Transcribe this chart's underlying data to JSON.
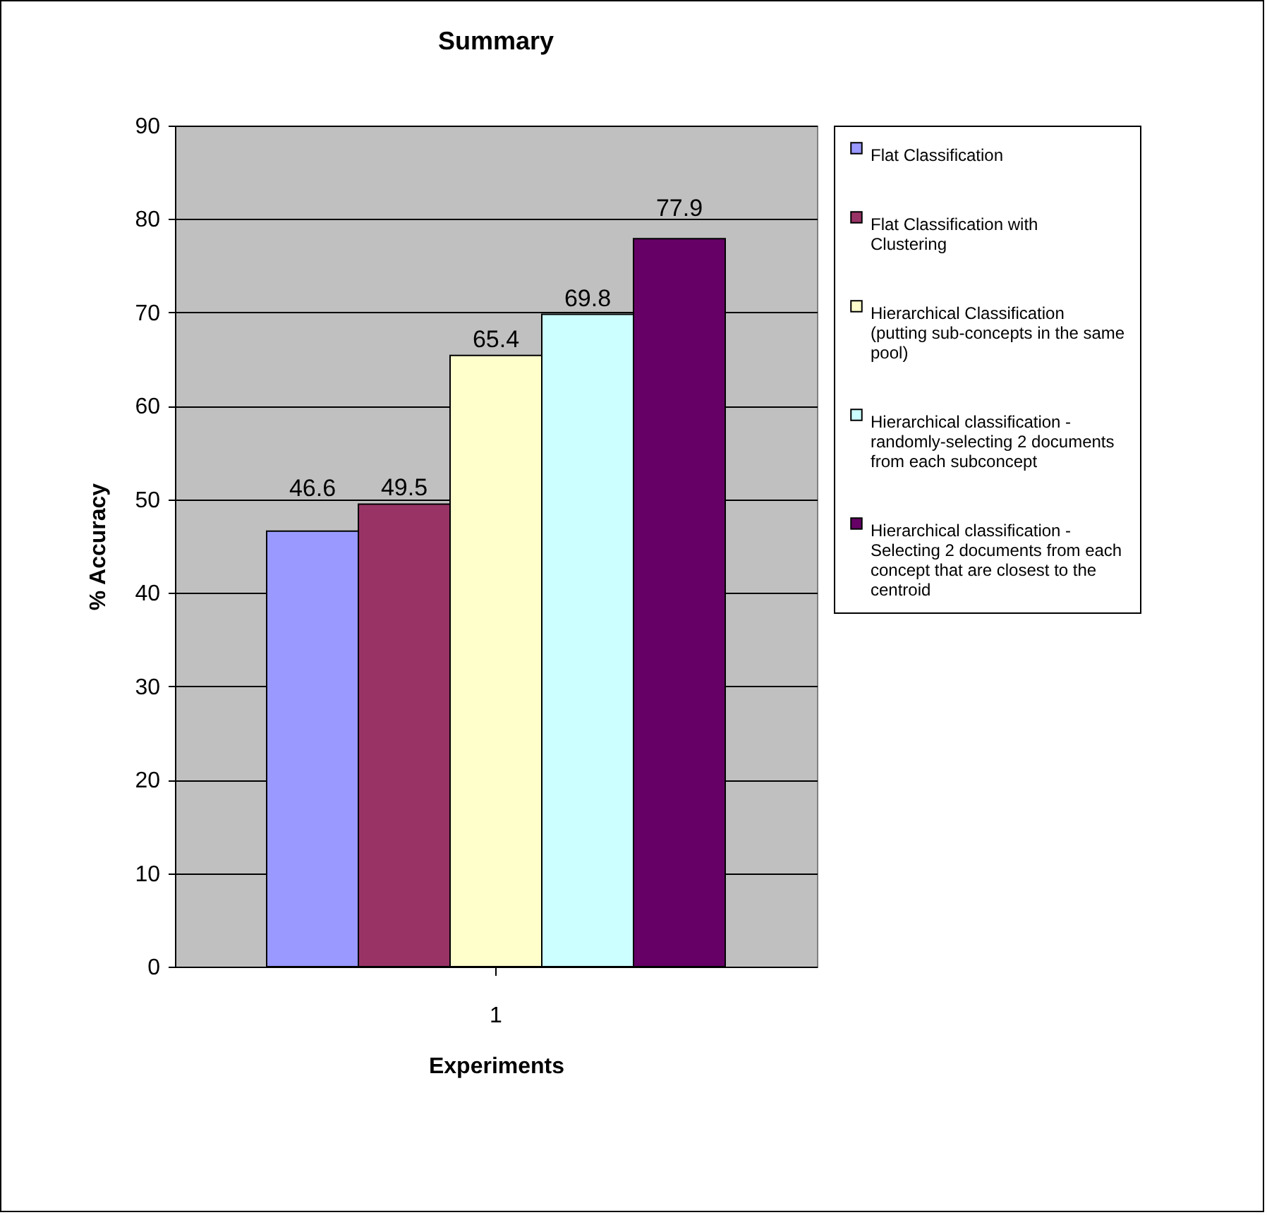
{
  "chart_data": {
    "type": "bar",
    "title": "Summary",
    "xlabel": "Experiments",
    "ylabel": "% Accuracy",
    "categories": [
      "1"
    ],
    "series": [
      {
        "name": "Flat Classification",
        "color": "#9999ff",
        "values": [
          46.6
        ]
      },
      {
        "name": "Flat Classification with Clustering",
        "color": "#993366",
        "values": [
          49.5
        ]
      },
      {
        "name": "Hierarchical Classification (putting sub-concepts in the same pool)",
        "color": "#ffffcc",
        "values": [
          65.4
        ]
      },
      {
        "name": "Hierarchical classification - randomly-selecting 2 documents from each subconcept",
        "color": "#ccffff",
        "values": [
          69.8
        ]
      },
      {
        "name": "Hierarchical classification - Selecting 2 documents from each concept that are closest to the centroid",
        "color": "#660066",
        "values": [
          77.9
        ]
      }
    ],
    "data_labels": true,
    "ylim": [
      0,
      90
    ],
    "yticks": [
      0,
      10,
      20,
      30,
      40,
      50,
      60,
      70,
      80,
      90
    ],
    "grid": "y",
    "legend": "right"
  }
}
